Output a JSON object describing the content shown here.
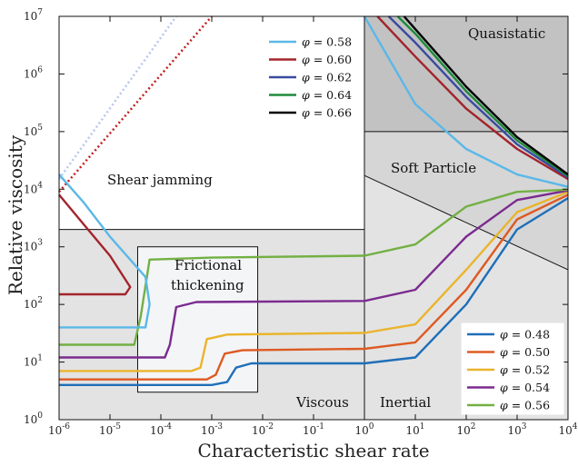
{
  "chart_data": {
    "type": "line",
    "xlabel": "Characteristic shear rate",
    "ylabel": "Relative viscosity",
    "xscale": "log",
    "yscale": "log",
    "xlim": [
      1e-06,
      10000.0
    ],
    "ylim": [
      1,
      10000000.0
    ],
    "x_tick_labels": [
      "10-6",
      "10-5",
      "10-4",
      "10-3",
      "10-2",
      "10-1",
      "100",
      "101",
      "102",
      "103",
      "104"
    ],
    "y_tick_labels": [
      "100",
      "101",
      "102",
      "103",
      "104",
      "105",
      "106",
      "107"
    ],
    "regions": [
      {
        "label": "Shear jamming",
        "fill": "#ffffff"
      },
      {
        "label": "Frictional thickening",
        "fill": "#f4f5f7"
      },
      {
        "label": "Viscous",
        "fill": "#e3e3e3"
      },
      {
        "label": "Inertial",
        "fill": "#e3e3e3"
      },
      {
        "label": "Soft Particle",
        "fill": "#d6d6d6"
      },
      {
        "label": "Quasistatic",
        "fill": "#c2c2c2"
      }
    ],
    "legend_top": {
      "placement": "top-center",
      "entries": [
        {
          "phi": "0.58",
          "color": "#5bb8e8"
        },
        {
          "phi": "0.60",
          "color": "#a3242c"
        },
        {
          "phi": "0.62",
          "color": "#3a4aa0"
        },
        {
          "phi": "0.64",
          "color": "#1e8a3c"
        },
        {
          "phi": "0.66",
          "color": "#000000"
        }
      ]
    },
    "legend_bottom": {
      "placement": "bottom-right",
      "entries": [
        {
          "phi": "0.48",
          "color": "#1f6fb8"
        },
        {
          "phi": "0.50",
          "color": "#dd5a22"
        },
        {
          "phi": "0.52",
          "color": "#eab42c"
        },
        {
          "phi": "0.54",
          "color": "#7b2b8f"
        },
        {
          "phi": "0.56",
          "color": "#72b043"
        }
      ]
    },
    "series": [
      {
        "phi": "0.48",
        "color": "#1f6fb8",
        "x": [
          1e-06,
          0.001,
          0.002,
          0.003,
          0.006,
          1,
          10,
          100,
          1000,
          10000
        ],
        "y": [
          4,
          4,
          4.5,
          8,
          9.5,
          9.5,
          12,
          100,
          2000,
          7000
        ]
      },
      {
        "phi": "0.50",
        "color": "#dd5a22",
        "x": [
          1e-06,
          0.0008,
          0.0012,
          0.0018,
          0.004,
          1,
          10,
          100,
          1000,
          10000
        ],
        "y": [
          5,
          5,
          6,
          14,
          16,
          17,
          22,
          180,
          3000,
          8000
        ]
      },
      {
        "phi": "0.52",
        "color": "#eab42c",
        "x": [
          1e-06,
          0.0004,
          0.0006,
          0.0008,
          0.002,
          1,
          10,
          100,
          1000,
          10000
        ],
        "y": [
          7,
          7,
          8,
          25,
          30,
          32,
          45,
          400,
          4000,
          9000
        ]
      },
      {
        "phi": "0.54",
        "color": "#7b2b8f",
        "x": [
          1e-06,
          0.00012,
          0.00015,
          0.0002,
          0.0005,
          1,
          10,
          100,
          1000,
          10000
        ],
        "y": [
          12,
          12,
          20,
          90,
          110,
          115,
          180,
          1500,
          6500,
          9500
        ]
      },
      {
        "phi": "0.56",
        "color": "#72b043",
        "x": [
          1e-06,
          3e-05,
          4e-05,
          6e-05,
          0.001,
          1,
          10,
          100,
          1000,
          10000
        ],
        "y": [
          20,
          20,
          60,
          600,
          650,
          700,
          1100,
          5000,
          9000,
          9800
        ]
      },
      {
        "phi": "0.58",
        "color": "#5bb8e8",
        "x": [
          1e-06,
          3e-06,
          1e-05,
          5e-05,
          6e-05,
          5e-05,
          1e-06
        ],
        "y": [
          18000,
          6000,
          1500,
          300,
          100,
          40,
          40
        ],
        "x2": [
          1,
          10,
          100,
          1000,
          10000
        ],
        "y2": [
          10000000.0,
          300000.0,
          50000.0,
          18000.0,
          11000.0
        ]
      },
      {
        "phi": "0.60",
        "color": "#a3242c",
        "x": [
          1e-06,
          3e-06,
          1e-05,
          2.5e-05,
          2e-05,
          1e-06
        ],
        "y": [
          8000,
          2500,
          700,
          200,
          150,
          150
        ],
        "x2": [
          1.8,
          10,
          100,
          1000,
          10000
        ],
        "y2": [
          10000000.0,
          2000000.0,
          250000.0,
          50000.0,
          15000.0
        ]
      },
      {
        "phi": "0.62",
        "color": "#3a4aa0",
        "x2": [
          3,
          10,
          100,
          1000,
          10000
        ],
        "y2": [
          10000000.0,
          3500000.0,
          400000.0,
          60000.0,
          16000.0
        ]
      },
      {
        "phi": "0.64",
        "color": "#1e8a3c",
        "x2": [
          4.5,
          10,
          100,
          1000,
          10000
        ],
        "y2": [
          10000000.0,
          5000000.0,
          500000.0,
          70000.0,
          17000.0
        ]
      },
      {
        "phi": "0.66",
        "color": "#000000",
        "x2": [
          6,
          10,
          100,
          1000,
          10000
        ],
        "y2": [
          10000000.0,
          6000000.0,
          600000.0,
          80000.0,
          18000.0
        ]
      }
    ]
  }
}
